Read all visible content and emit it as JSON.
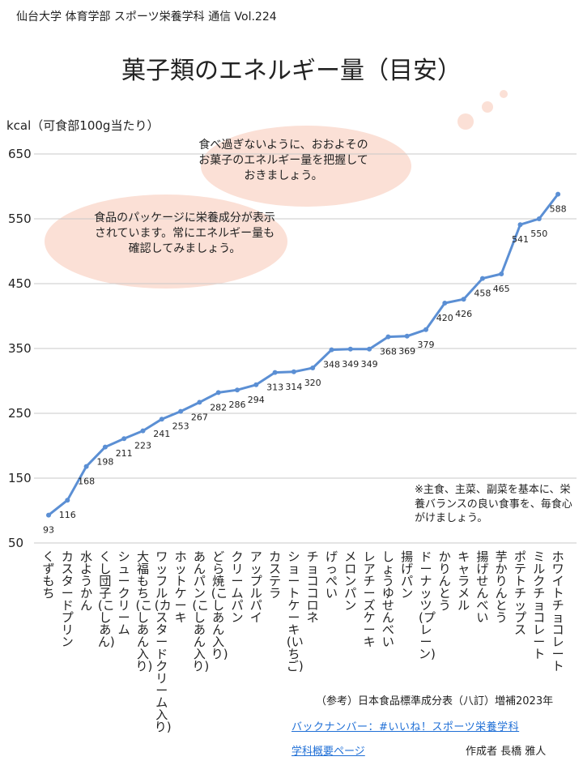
{
  "header": {
    "publication": "仙台大学 体育学部 スポーツ栄養学科 通信 Vol.224"
  },
  "title": "菓子類のエネルギー量（目安）",
  "bubbles": {
    "top": "食べ過ぎないように、おおよそのお菓子のエネルギー量を把握しておきましょう。",
    "left": "食品のパッケージに栄養成分が表示されています。常にエネルギー量も確認してみましょう。"
  },
  "note": "※主食、主菜、副菜を基本に、栄養バランスの良い食事を、毎食心がけましょう。",
  "footer": {
    "source": "（参考）日本食品標準成分表（八訂）増補2023年",
    "backnumber_link": "バックナンバー：#いいね！スポーツ栄養学科",
    "outline_link": "学科概要ページ",
    "author": "作成者 長橋 雅人"
  },
  "colors": {
    "line": "#5b8fd4",
    "grid": "#c8c8c8",
    "bubble": "#fbe0d6",
    "link": "#1f6fd6"
  },
  "chart_data": {
    "type": "line",
    "ylabel": "kcal（可食部100g当たり）",
    "ylim": [
      50,
      650
    ],
    "yticks": [
      50,
      150,
      250,
      350,
      450,
      550,
      650
    ],
    "grid": true,
    "categories": [
      "くずもち",
      "カスタードプリン",
      "水ようかん",
      "くし団子(こしあん)",
      "シュークリーム",
      "大福もち(こしあん入り)",
      "ワッフル(カスタードクリーム入り)",
      "ホットケーキ",
      "あんパン(こしあん入り)",
      "どら焼(こしあん入り)",
      "クリームパン",
      "アップルパイ",
      "カステラ",
      "ショートケーキ(いちご)",
      "チョココロネ",
      "げっぺい",
      "メロンパン",
      "レアチーズケーキ",
      "しょうゆせんべい",
      "揚げパン",
      "ドーナッツ(プレーン)",
      "かりんとう",
      "キャラメル",
      "揚げせんべい",
      "芋かりんとう",
      "ポテトチップス",
      "ミルクチョコレート",
      "ホワイトチョコレート"
    ],
    "values": [
      93,
      116,
      168,
      198,
      211,
      223,
      241,
      253,
      267,
      282,
      286,
      294,
      313,
      314,
      320,
      348,
      349,
      349,
      368,
      369,
      379,
      420,
      426,
      458,
      465,
      541,
      550,
      588
    ]
  }
}
